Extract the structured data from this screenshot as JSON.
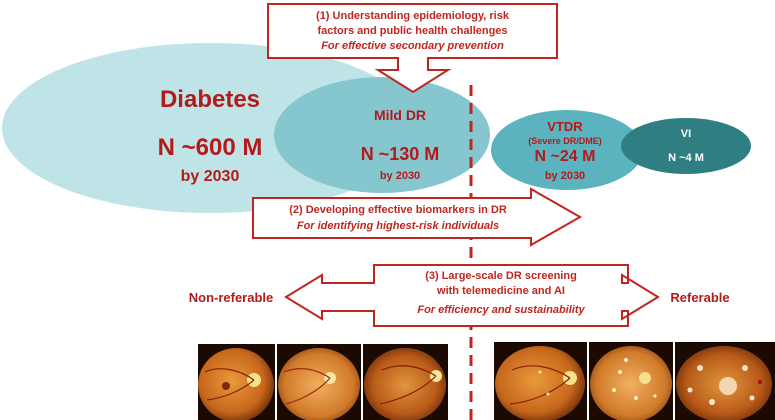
{
  "colors": {
    "accent_red": "#c0261f",
    "diabetes_fill": "#bfe4e8",
    "mild_fill": "#86c6cf",
    "vtdr_fill": "#5bb3bf",
    "vi_fill": "#2f7f82"
  },
  "diabetes": {
    "title": "Diabetes",
    "count": "N ~600 M",
    "year": "by 2030"
  },
  "mild_dr": {
    "title": "Mild DR",
    "count": "N ~130 M",
    "year": "by 2030"
  },
  "vtdr": {
    "title": "VTDR",
    "subtitle": "(Severe DR/DME)",
    "count": "N ~24 M",
    "year": "by 2030"
  },
  "vi": {
    "title": "VI",
    "count": "N ~4 M"
  },
  "step1": {
    "line1": "(1) Understanding epidemiology, risk",
    "line2": "factors and public health challenges",
    "line3": "For effective secondary prevention"
  },
  "step2": {
    "line1": "(2) Developing effective biomarkers in DR",
    "line2": "For identifying highest-risk individuals"
  },
  "step3": {
    "line1": "(3) Large-scale DR screening",
    "line2": "with telemedicine and AI",
    "line3": "For efficiency and sustainability"
  },
  "labels": {
    "non_referable": "Non-referable",
    "referable": "Referable"
  },
  "fundus_images": {
    "non_referable": [
      "healthy fundus 1",
      "healthy fundus 2",
      "healthy fundus 3"
    ],
    "referable": [
      "retinopathy fundus 1",
      "retinopathy fundus 2",
      "retinopathy fundus 3"
    ]
  }
}
